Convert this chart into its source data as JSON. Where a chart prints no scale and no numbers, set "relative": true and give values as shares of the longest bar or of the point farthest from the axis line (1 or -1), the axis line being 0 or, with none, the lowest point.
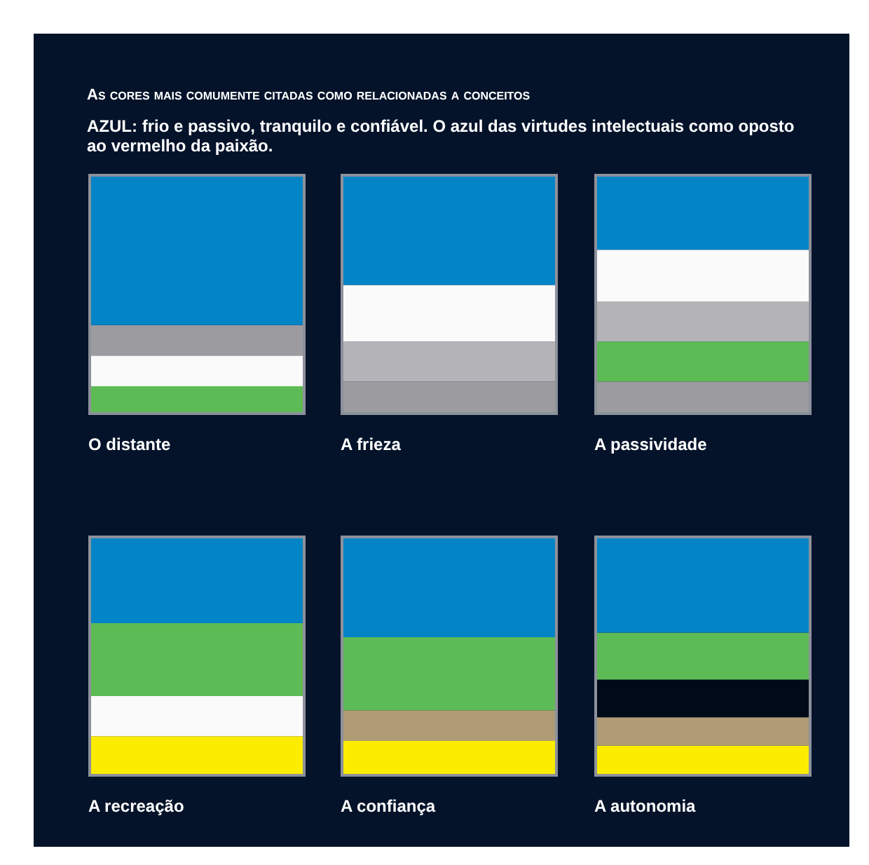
{
  "chart_data": [
    {
      "type": "bar",
      "title": "As cores mais comumente citadas como relacionadas a conceitos",
      "subtitle": "AZUL: frio e passivo, tranquilo e confiável. O azul das virtudes intelectuais como oposto ao vermelho da paixão.",
      "xlabel": "O distante",
      "stacked": true,
      "relative": true,
      "categories": [
        null
      ],
      "series": [
        {
          "color": "#5cbb54",
          "values": [
            0.11
          ]
        },
        {
          "color": "#fafafa",
          "values": [
            0.13
          ]
        },
        {
          "color": "#9c9ca0",
          "values": [
            0.13
          ]
        },
        {
          "color": "#0284c7",
          "values": [
            0.63
          ]
        }
      ]
    },
    {
      "type": "bar",
      "xlabel": "A frieza",
      "stacked": true,
      "relative": true,
      "categories": [
        null
      ],
      "series": [
        {
          "color": "#9c9ca0",
          "values": [
            0.13
          ]
        },
        {
          "color": "#b4b4b8",
          "values": [
            0.17
          ]
        },
        {
          "color": "#fafafa",
          "values": [
            0.24
          ]
        },
        {
          "color": "#0284c7",
          "values": [
            0.46
          ]
        }
      ]
    },
    {
      "type": "bar",
      "xlabel": "A passividade",
      "stacked": true,
      "relative": true,
      "categories": [
        null
      ],
      "series": [
        {
          "color": "#9c9ca0",
          "values": [
            0.13
          ]
        },
        {
          "color": "#5cbb54",
          "values": [
            0.17
          ]
        },
        {
          "color": "#b4b4b8",
          "values": [
            0.17
          ]
        },
        {
          "color": "#fafafa",
          "values": [
            0.22
          ]
        },
        {
          "color": "#0284c7",
          "values": [
            0.31
          ]
        }
      ]
    },
    {
      "type": "bar",
      "xlabel": "A recreação",
      "stacked": true,
      "relative": true,
      "categories": [
        null
      ],
      "series": [
        {
          "color": "#fcec00",
          "values": [
            0.16
          ]
        },
        {
          "color": "#fafafa",
          "values": [
            0.17
          ]
        },
        {
          "color": "#5cbb54",
          "values": [
            0.31
          ]
        },
        {
          "color": "#0284c7",
          "values": [
            0.36
          ]
        }
      ]
    },
    {
      "type": "bar",
      "xlabel": "A confiança",
      "stacked": true,
      "relative": true,
      "categories": [
        null
      ],
      "series": [
        {
          "color": "#fcec00",
          "values": [
            0.14
          ]
        },
        {
          "color": "#b09c74",
          "values": [
            0.13
          ]
        },
        {
          "color": "#5cbb54",
          "values": [
            0.31
          ]
        },
        {
          "color": "#0284c7",
          "values": [
            0.42
          ]
        }
      ]
    },
    {
      "type": "bar",
      "xlabel": "A autonomia",
      "stacked": true,
      "relative": true,
      "categories": [
        null
      ],
      "series": [
        {
          "color": "#fcec00",
          "values": [
            0.12
          ]
        },
        {
          "color": "#b09c74",
          "values": [
            0.12
          ]
        },
        {
          "color": "#000a18",
          "values": [
            0.16
          ]
        },
        {
          "color": "#5cbb54",
          "values": [
            0.2
          ]
        },
        {
          "color": "#0284c7",
          "values": [
            0.4
          ]
        }
      ]
    }
  ]
}
